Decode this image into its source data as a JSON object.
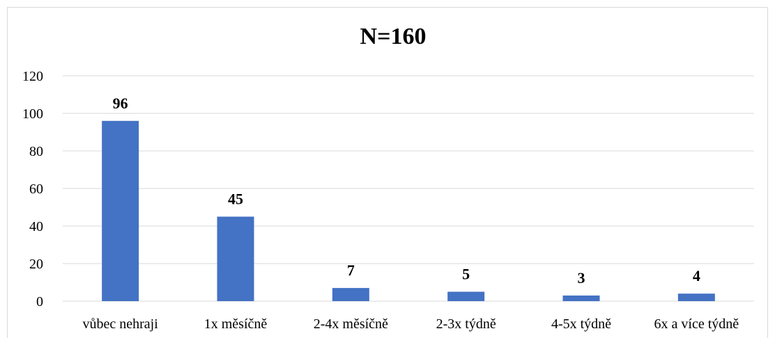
{
  "chart_data": {
    "type": "bar",
    "title": "N=160",
    "categories": [
      "vůbec nehraji",
      "1x měsíčně",
      "2-4x měsíčně",
      "2-3x týdně",
      "4-5x týdně",
      "6x a více týdně"
    ],
    "values": [
      96,
      45,
      7,
      5,
      3,
      4
    ],
    "ylim": [
      0,
      120
    ],
    "yticks": [
      0,
      20,
      40,
      60,
      80,
      100,
      120
    ],
    "grid": true,
    "bar_color": "#4472C4",
    "data_labels": true
  }
}
